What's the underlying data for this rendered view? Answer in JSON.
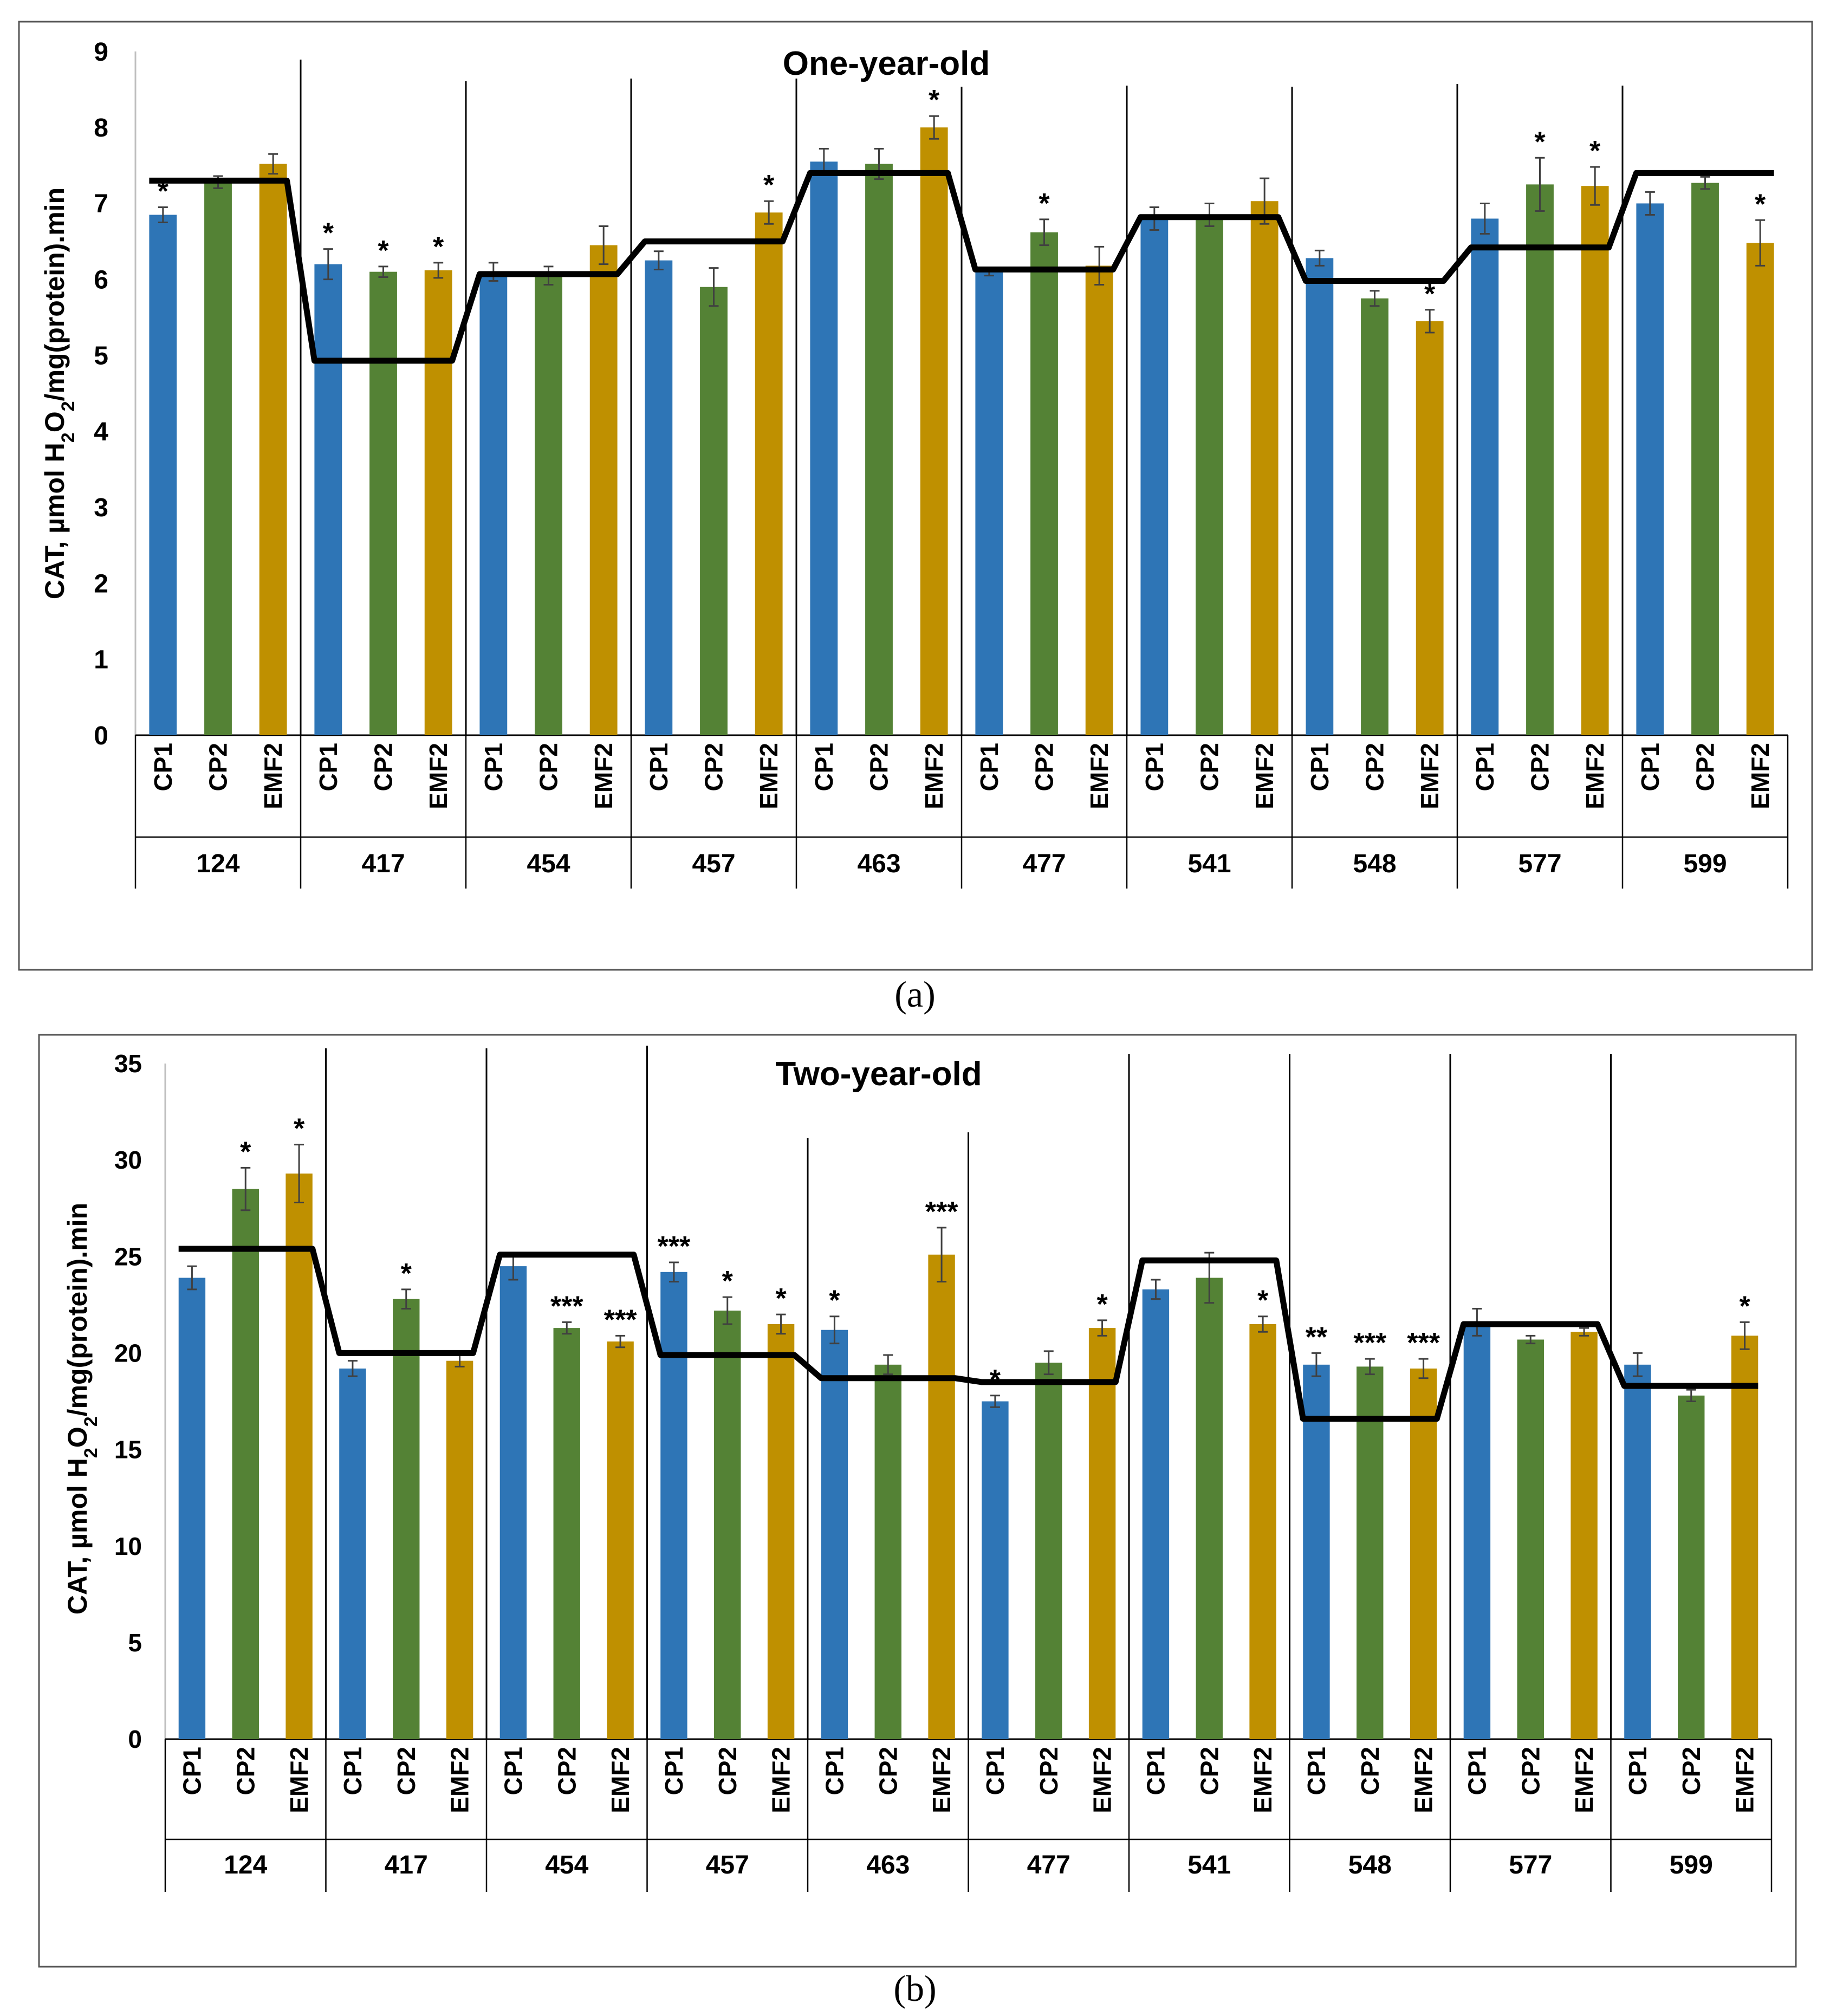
{
  "figure": {
    "panel_a_label": "(a)",
    "panel_b_label": "(b)"
  },
  "colors": {
    "CP1": "#2e75b6",
    "CP2": "#548235",
    "EMF2": "#bf9000",
    "mean_line": "#000000",
    "error_bar": "#404040"
  },
  "chart_data": [
    {
      "type": "bar",
      "title": "One-year-old",
      "ylabel": "CAT, µmol H2O2/mg(protein).min",
      "ylabel_parts": [
        "CAT, µmol H",
        "2",
        "O",
        "2",
        "/mg(protein).min"
      ],
      "ylim": [
        0,
        9
      ],
      "yticks": [
        0,
        1,
        2,
        3,
        4,
        5,
        6,
        7,
        8,
        9
      ],
      "categories": [
        "124",
        "417",
        "454",
        "457",
        "463",
        "477",
        "541",
        "548",
        "577",
        "599"
      ],
      "subcategories": [
        "CP1",
        "CP2",
        "EMF2"
      ],
      "series": [
        {
          "name": "CP1",
          "values": [
            6.85,
            6.2,
            6.1,
            6.25,
            7.55,
            6.1,
            6.8,
            6.28,
            6.8,
            7.0
          ],
          "errors": [
            0.1,
            0.2,
            0.12,
            0.12,
            0.17,
            0.05,
            0.15,
            0.1,
            0.2,
            0.15
          ],
          "sig": [
            "*",
            "*",
            "",
            "",
            "",
            "",
            "",
            "",
            "",
            ""
          ]
        },
        {
          "name": "CP2",
          "values": [
            7.28,
            6.1,
            6.05,
            5.9,
            7.52,
            6.62,
            6.85,
            5.75,
            7.25,
            7.27
          ],
          "errors": [
            0.08,
            0.07,
            0.12,
            0.25,
            0.2,
            0.17,
            0.15,
            0.1,
            0.35,
            0.08
          ],
          "sig": [
            "",
            "*",
            "",
            "",
            "",
            "*",
            "",
            "",
            "*",
            ""
          ]
        },
        {
          "name": "EMF2",
          "values": [
            7.52,
            6.12,
            6.45,
            6.88,
            8.0,
            6.18,
            7.03,
            5.45,
            7.23,
            6.48
          ],
          "errors": [
            0.13,
            0.1,
            0.25,
            0.15,
            0.15,
            0.25,
            0.3,
            0.15,
            0.25,
            0.3
          ],
          "sig": [
            "",
            "*",
            "",
            "*",
            "*",
            "",
            "",
            "*",
            "*",
            "*"
          ]
        }
      ],
      "mean_line": [
        7.3,
        4.93,
        6.07,
        6.5,
        7.4,
        6.13,
        6.82,
        5.98,
        6.42,
        7.4
      ]
    },
    {
      "type": "bar",
      "title": "Two-year-old",
      "ylabel": "CAT, µmol H2O2/mg(protein).min",
      "ylabel_parts": [
        "CAT, µmol H",
        "2",
        "O",
        "2",
        "/mg(protein).min"
      ],
      "ylim": [
        0,
        35
      ],
      "yticks": [
        0,
        5,
        10,
        15,
        20,
        25,
        30,
        35
      ],
      "categories": [
        "124",
        "417",
        "454",
        "457",
        "463",
        "477",
        "541",
        "548",
        "577",
        "599"
      ],
      "subcategories": [
        "CP1",
        "CP2",
        "EMF2"
      ],
      "series": [
        {
          "name": "CP1",
          "values": [
            23.9,
            19.2,
            24.5,
            24.2,
            21.2,
            17.5,
            23.3,
            19.4,
            21.6,
            19.4
          ],
          "errors": [
            0.6,
            0.4,
            0.7,
            0.5,
            0.7,
            0.3,
            0.5,
            0.6,
            0.7,
            0.6
          ],
          "sig": [
            "",
            "",
            "",
            "***",
            "*",
            "*",
            "",
            "**",
            "",
            ""
          ]
        },
        {
          "name": "CP2",
          "values": [
            28.5,
            22.8,
            21.3,
            22.2,
            19.4,
            19.5,
            23.9,
            19.3,
            20.7,
            17.8
          ],
          "errors": [
            1.1,
            0.5,
            0.3,
            0.7,
            0.5,
            0.6,
            1.3,
            0.4,
            0.2,
            0.3
          ],
          "sig": [
            "*",
            "*",
            "***",
            "*",
            "",
            "",
            "",
            "***",
            "",
            ""
          ]
        },
        {
          "name": "EMF2",
          "values": [
            29.3,
            19.6,
            20.6,
            21.5,
            25.1,
            21.3,
            21.5,
            19.2,
            21.1,
            20.9
          ],
          "errors": [
            1.5,
            0.3,
            0.3,
            0.5,
            1.4,
            0.4,
            0.4,
            0.5,
            0.2,
            0.7
          ],
          "sig": [
            "*",
            "",
            "***",
            "*",
            "***",
            "*",
            "*",
            "***",
            "",
            "*"
          ]
        }
      ],
      "mean_line": [
        25.4,
        20.0,
        25.1,
        19.9,
        18.7,
        18.5,
        24.8,
        16.6,
        21.5,
        18.3
      ]
    }
  ]
}
